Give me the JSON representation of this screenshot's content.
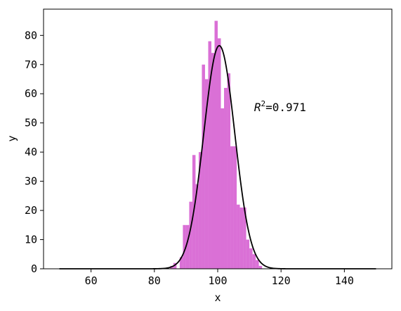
{
  "chart_data": {
    "type": "bar",
    "xlabel": "x",
    "ylabel": "y",
    "xlim": [
      45,
      155
    ],
    "ylim": [
      0,
      89
    ],
    "xticks": [
      60,
      80,
      100,
      120,
      140
    ],
    "yticks": [
      0,
      10,
      20,
      30,
      40,
      50,
      60,
      70,
      80
    ],
    "grid": false,
    "bar_color": "#DA70D6",
    "curve_color": "#000000",
    "histogram": {
      "name": "",
      "bin_width": 1,
      "bins": [
        {
          "x": 85.5,
          "y": 1
        },
        {
          "x": 86.5,
          "y": 2
        },
        {
          "x": 88.5,
          "y": 4
        },
        {
          "x": 89.5,
          "y": 15
        },
        {
          "x": 90.5,
          "y": 15
        },
        {
          "x": 91.5,
          "y": 23
        },
        {
          "x": 92.5,
          "y": 39
        },
        {
          "x": 93.5,
          "y": 29
        },
        {
          "x": 94.5,
          "y": 40
        },
        {
          "x": 95.5,
          "y": 70
        },
        {
          "x": 96.5,
          "y": 65
        },
        {
          "x": 97.5,
          "y": 78
        },
        {
          "x": 98.5,
          "y": 74
        },
        {
          "x": 99.5,
          "y": 85
        },
        {
          "x": 100.5,
          "y": 79
        },
        {
          "x": 101.5,
          "y": 55
        },
        {
          "x": 102.5,
          "y": 62
        },
        {
          "x": 103.5,
          "y": 67
        },
        {
          "x": 104.5,
          "y": 42
        },
        {
          "x": 105.5,
          "y": 42
        },
        {
          "x": 106.5,
          "y": 22
        },
        {
          "x": 107.5,
          "y": 21
        },
        {
          "x": 108.5,
          "y": 21
        },
        {
          "x": 109.5,
          "y": 10
        },
        {
          "x": 110.5,
          "y": 7
        },
        {
          "x": 111.5,
          "y": 5
        },
        {
          "x": 112.5,
          "y": 3
        },
        {
          "x": 113.5,
          "y": 1
        }
      ]
    },
    "fit_curve": {
      "name": "",
      "type": "gaussian",
      "amplitude": 76.5,
      "mean": 100.5,
      "sigma": 4.9,
      "x_range": [
        50,
        150
      ]
    },
    "annotation": {
      "prefix": "R",
      "superscript": "2",
      "value_text": "=0.971",
      "x": 111.5,
      "y": 54
    }
  }
}
